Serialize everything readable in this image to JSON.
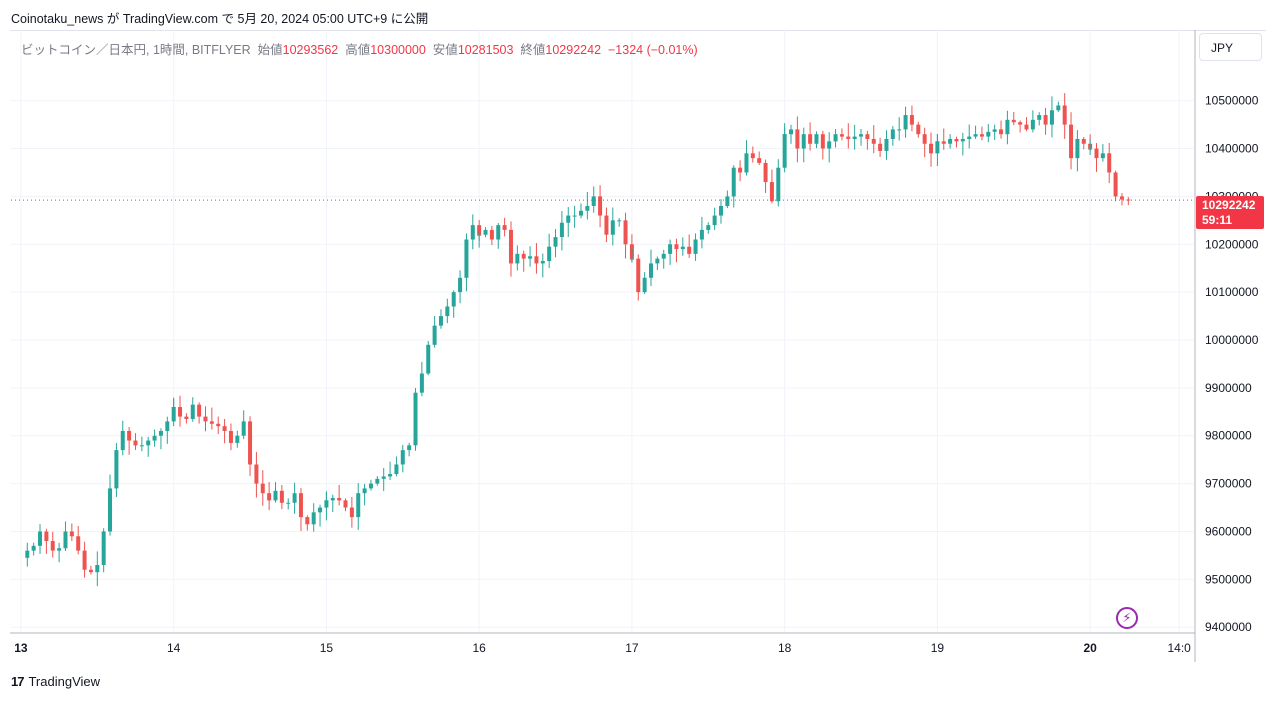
{
  "header": {
    "published_line": "Coinotaku_news が TradingView.com で 5月 20, 2024 05:00 UTC+9 に公開"
  },
  "legend": {
    "symbol": "ビットコイン／日本円, 1時間, BITFLYER",
    "open_label": "始値",
    "open_value": "10293562",
    "high_label": "高値",
    "high_value": "10300000",
    "low_label": "安値",
    "low_value": "10281503",
    "close_label": "終値",
    "close_value": "10292242",
    "change": "−1324 (−0.01%)"
  },
  "currency_button": "JPY",
  "price_tag": {
    "price": "10292242",
    "countdown": "59:11"
  },
  "footer": {
    "brand": "TradingView"
  },
  "colors": {
    "up": "#26a69a",
    "down": "#ef5350",
    "accent": "#f23645",
    "grid": "#f0f3fa",
    "axis_text": "#131722"
  },
  "chart_data": {
    "type": "candlestick",
    "title": "",
    "xlabel": "",
    "ylabel": "",
    "y_ticks": [
      10500000,
      10400000,
      10300000,
      10200000,
      10100000,
      10000000,
      9900000,
      9800000,
      9700000,
      9600000,
      9500000,
      9400000
    ],
    "y_tick_labels": [
      "10500000",
      "10400000",
      "10300000",
      "10200000",
      "10100000",
      "10000000",
      "9900000",
      "9800000",
      "9700000",
      "9600000",
      "9500000",
      "9400000"
    ],
    "ylim": [
      9390000,
      10585000
    ],
    "x_tick_labels": [
      "13",
      "14",
      "15",
      "16",
      "17",
      "18",
      "19",
      "20",
      "14:0"
    ],
    "x_tick_positions_days": [
      13,
      14,
      15,
      16,
      17,
      18,
      19,
      20,
      20.583
    ],
    "x_tick_bold": [
      "13",
      "20"
    ],
    "xlim_days": [
      12.935,
      20.68
    ],
    "current_price": 10292242,
    "grid": true,
    "daily_levels": [
      {
        "day": 13,
        "levels": [
          9545000,
          9560000,
          9570000,
          9600000,
          9580000,
          9560000,
          9565000,
          9600000,
          9590000,
          9560000,
          9520000,
          9515000,
          9530000,
          9600000,
          9690000,
          9770000,
          9810000,
          9790000,
          9780000,
          9780000,
          9790000,
          9800000,
          9810000,
          9830000,
          9860000
        ]
      },
      {
        "day": 14,
        "levels": [
          9860000,
          9840000,
          9835000,
          9865000,
          9840000,
          9830000,
          9825000,
          9820000,
          9810000,
          9785000,
          9800000,
          9830000,
          9740000,
          9700000,
          9680000,
          9665000,
          9685000,
          9660000,
          9660000,
          9680000,
          9630000,
          9615000,
          9640000,
          9650000,
          9665000
        ]
      },
      {
        "day": 15,
        "levels": [
          9665000,
          9670000,
          9665000,
          9650000,
          9630000,
          9680000,
          9690000,
          9700000,
          9710000,
          9715000,
          9720000,
          9740000,
          9770000,
          9780000,
          9890000,
          9930000,
          9990000,
          10030000,
          10050000,
          10070000,
          10100000,
          10130000,
          10210000,
          10240000,
          10220000
        ]
      },
      {
        "day": 16,
        "levels": [
          10220000,
          10230000,
          10210000,
          10240000,
          10230000,
          10160000,
          10180000,
          10170000,
          10175000,
          10160000,
          10165000,
          10195000,
          10215000,
          10245000,
          10260000,
          10260000,
          10270000,
          10280000,
          10300000,
          10260000,
          10220000,
          10250000,
          10250000,
          10200000,
          10170000
        ]
      },
      {
        "day": 17,
        "levels": [
          10170000,
          10100000,
          10130000,
          10160000,
          10170000,
          10180000,
          10200000,
          10190000,
          10195000,
          10180000,
          10210000,
          10230000,
          10240000,
          10260000,
          10280000,
          10300000,
          10360000,
          10350000,
          10390000,
          10380000,
          10370000,
          10330000,
          10290000,
          10360000,
          10430000
        ]
      },
      {
        "day": 18,
        "levels": [
          10430000,
          10440000,
          10400000,
          10430000,
          10410000,
          10430000,
          10400000,
          10415000,
          10430000,
          10425000,
          10420000,
          10425000,
          10430000,
          10420000,
          10410000,
          10395000,
          10420000,
          10440000,
          10440000,
          10470000,
          10450000,
          10430000,
          10410000,
          10390000,
          10415000
        ]
      },
      {
        "day": 19,
        "levels": [
          10415000,
          10410000,
          10420000,
          10415000,
          10420000,
          10425000,
          10430000,
          10425000,
          10435000,
          10440000,
          10430000,
          10460000,
          10455000,
          10450000,
          10440000,
          10460000,
          10470000,
          10450000,
          10480000,
          10490000,
          10450000,
          10380000,
          10420000,
          10410000,
          10400000
        ]
      },
      {
        "day": 20,
        "levels": [
          10400000,
          10380000,
          10390000,
          10350000,
          10300000,
          10293562,
          10292242
        ]
      }
    ],
    "wick_pad": 12000
  }
}
